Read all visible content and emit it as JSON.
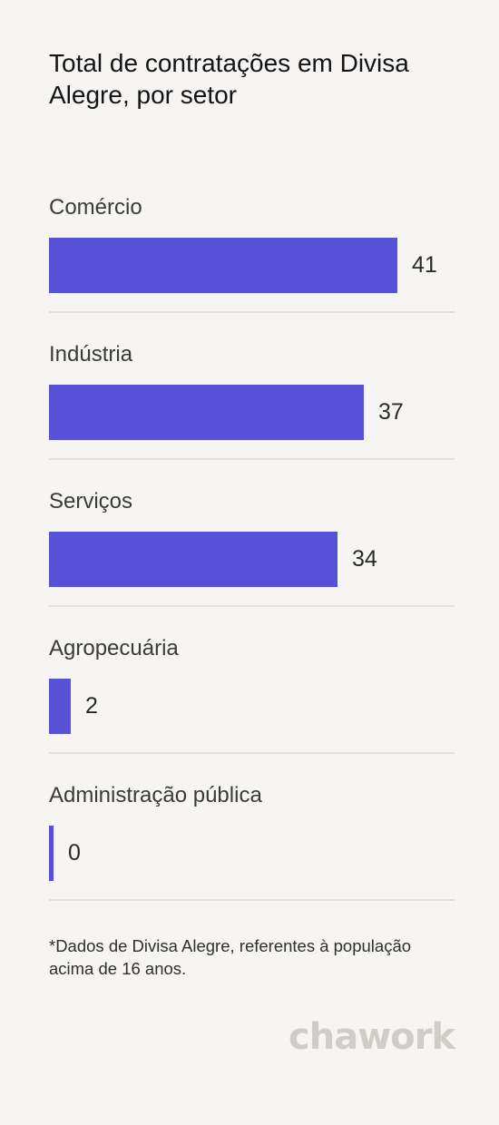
{
  "title": "Total de contratações em Divisa Alegre, por setor",
  "footnote": "*Dados de Divisa Alegre, referentes à população acima de 16 anos.",
  "logo": "chawork",
  "colors": {
    "bar": "#5751d8",
    "background": "#f6f5f3",
    "divider": "#e2e0dc"
  },
  "chart_data": {
    "type": "bar",
    "orientation": "horizontal",
    "title": "Total de contratações em Divisa Alegre, por setor",
    "categories": [
      "Comércio",
      "Indústria",
      "Serviços",
      "Agropecuária",
      "Administração pública"
    ],
    "values": [
      41,
      37,
      34,
      2,
      0
    ],
    "value_labels": [
      "41",
      "37",
      "34",
      "2",
      "0"
    ],
    "xlabel": "",
    "ylabel": "",
    "xlim": [
      0,
      41
    ],
    "grid": false,
    "legend": "none"
  }
}
